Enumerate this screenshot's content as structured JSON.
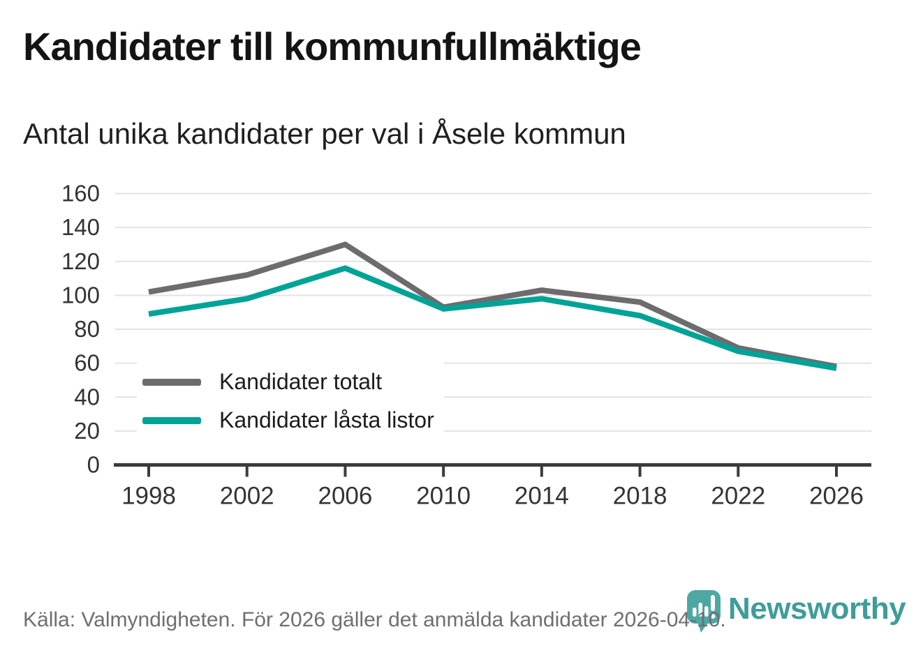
{
  "header": {
    "title": "Kandidater till kommunfullmäktige",
    "subtitle": "Antal unika kandidater per val i Åsele kommun"
  },
  "chart_data": {
    "type": "line",
    "title": "Kandidater till kommunfullmäktige",
    "subtitle": "Antal unika kandidater per val i Åsele kommun",
    "x": [
      1998,
      2002,
      2006,
      2010,
      2014,
      2018,
      2022,
      2026
    ],
    "x_tick_labels": [
      "1998",
      "2002",
      "2006",
      "2010",
      "2014",
      "2018",
      "2022",
      "2026"
    ],
    "series": [
      {
        "name": "Kandidater totalt",
        "color": "#6e6b6e",
        "values": [
          102,
          112,
          130,
          93,
          103,
          96,
          69,
          58
        ]
      },
      {
        "name": "Kandidater låsta listor",
        "color": "#00a396",
        "values": [
          89,
          98,
          116,
          92,
          98,
          88,
          67,
          57
        ]
      }
    ],
    "ylim": [
      0,
      160
    ],
    "y_ticks": [
      0,
      20,
      40,
      60,
      80,
      100,
      120,
      140,
      160
    ],
    "xlabel": "",
    "ylabel": "",
    "grid": "horizontal",
    "legend_position": "inside-bottom-left",
    "colors": {
      "gridline": "#e3e3e3",
      "axis": "#3b3b3b",
      "tick_label": "#333333"
    }
  },
  "footer": {
    "source_text": "Källa: Valmyndigheten. För 2026 gäller det anmälda kandidater 2026-04-10.",
    "brand_name": "Newsworthy",
    "brand_color": "#3f9d99",
    "pin_color": "#4da8a3"
  },
  "icons": {
    "logo_pin": "map-pin-bar-chart-icon"
  }
}
